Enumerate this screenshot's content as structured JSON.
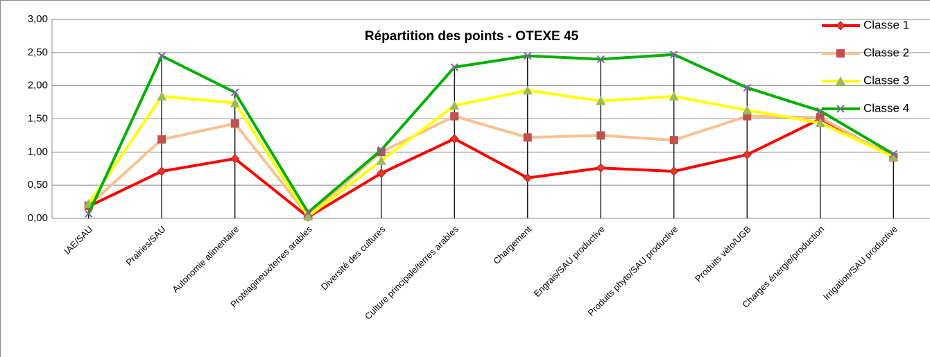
{
  "chart_data": {
    "type": "line",
    "title": "Répartition des points - OTEXE 45",
    "categories": [
      "IAE/SAU",
      "Prairies/SAU",
      "Autonomie alimentaire",
      "Protéagineux/terres arables",
      "Diversité des cultures",
      "Culture principale/terres arables",
      "Chargement",
      "Engrais/SAU productive",
      "Produits phyto/SAU productive",
      "Produits véto/UGB",
      "Charges énergie/production",
      "Irrigation/SAU productive"
    ],
    "series": [
      {
        "name": "Classe 1",
        "color": "#FF0000",
        "marker_color": "#E8352A",
        "marker": "diamond",
        "values": [
          0.18,
          0.71,
          0.9,
          0.02,
          0.68,
          1.2,
          0.61,
          0.76,
          0.71,
          0.96,
          1.5,
          0.93
        ]
      },
      {
        "name": "Classe 2",
        "color": "#FAC090",
        "marker_color": "#C0504D",
        "marker": "square",
        "values": [
          0.19,
          1.19,
          1.43,
          0.04,
          1.0,
          1.54,
          1.22,
          1.25,
          1.18,
          1.54,
          1.52,
          0.92
        ]
      },
      {
        "name": "Classe 3",
        "color": "#FFFF00",
        "marker_color": "#9BBB59",
        "marker": "triangle",
        "values": [
          0.22,
          1.84,
          1.74,
          0.03,
          0.87,
          1.7,
          1.93,
          1.77,
          1.84,
          1.63,
          1.44,
          0.93
        ]
      },
      {
        "name": "Classe 4",
        "color": "#00B000",
        "marker_color": "#8064A2",
        "marker": "x",
        "values": [
          0.07,
          2.45,
          1.9,
          0.09,
          1.03,
          2.28,
          2.45,
          2.4,
          2.47,
          1.97,
          1.62,
          0.97
        ]
      }
    ],
    "ylim": [
      0,
      3
    ],
    "yticks": [
      {
        "value": 0,
        "label": "0,00"
      },
      {
        "value": 0.5,
        "label": "0,50"
      },
      {
        "value": 1,
        "label": "1,00"
      },
      {
        "value": 1.5,
        "label": "1,50"
      },
      {
        "value": 2,
        "label": "2,00"
      },
      {
        "value": 2.5,
        "label": "2,50"
      },
      {
        "value": 3,
        "label": "3,00"
      }
    ],
    "grid": true,
    "drop_lines": true,
    "legend": "top-right"
  }
}
